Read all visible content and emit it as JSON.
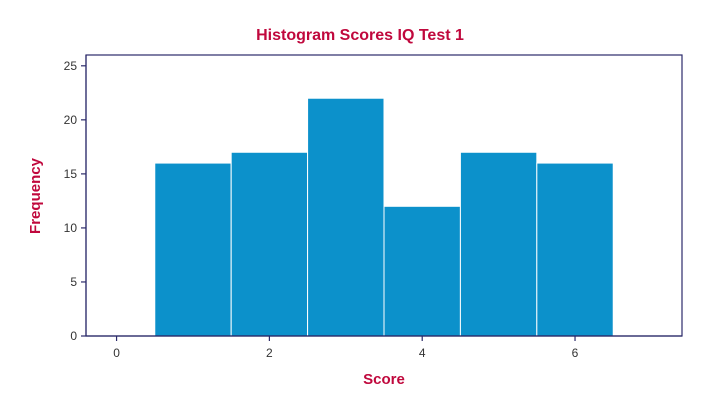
{
  "chart_data": {
    "type": "bar",
    "title": "Histogram Scores IQ Test 1",
    "xlabel": "Score",
    "ylabel": "Frequency",
    "x": [
      1,
      2,
      3,
      4,
      5,
      6
    ],
    "values": [
      16,
      17,
      22,
      12,
      17,
      16
    ],
    "bin_width": 1,
    "xlim": [
      -0.4,
      7.4
    ],
    "ylim": [
      0,
      26
    ],
    "xticks": [
      0,
      2,
      4,
      6
    ],
    "yticks": [
      0,
      5,
      10,
      15,
      20,
      25
    ],
    "grid": false,
    "legend": "none",
    "colors": {
      "bar_fill": "#0c91cb",
      "bar_stroke": "#ffffff",
      "frame": "#2b2a6a",
      "title_text": "#c0083d"
    }
  }
}
